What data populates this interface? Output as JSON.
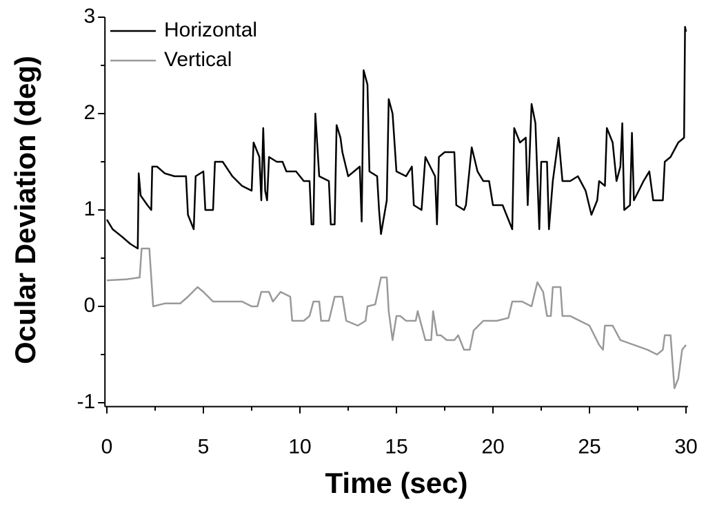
{
  "chart_data": {
    "type": "line",
    "xlabel": "Time (sec)",
    "ylabel": "Ocular Deviation (deg)",
    "xlim": [
      -0.1,
      30.1
    ],
    "ylim": [
      -1.04,
      3
    ],
    "xticks": [
      0,
      5,
      10,
      15,
      20,
      25,
      30
    ],
    "yticks": [
      -1,
      0,
      1,
      2,
      3
    ],
    "x_minor_ticks": [
      2.5,
      7.5,
      12.5,
      17.5,
      22.5,
      27.5
    ],
    "y_minor_ticks": [
      -0.5,
      0.5,
      1.5,
      2.5
    ],
    "legend": "upper left",
    "series": [
      {
        "name": "Horizontal",
        "color": "#000000",
        "x": [
          0,
          0.3,
          0.8,
          1.2,
          1.6,
          1.65,
          1.75,
          2.1,
          2.3,
          2.35,
          2.6,
          3,
          3.5,
          4.1,
          4.2,
          4.5,
          4.6,
          5,
          5.1,
          5.5,
          5.6,
          6,
          6.5,
          7,
          7.5,
          7.6,
          7.9,
          8,
          8.1,
          8.2,
          8.3,
          8.4,
          8.8,
          9.1,
          9.3,
          9.8,
          10.2,
          10.5,
          10.6,
          10.7,
          10.8,
          11,
          11.5,
          11.6,
          11.8,
          11.9,
          12.1,
          12.2,
          12.5,
          12.8,
          13.1,
          13.2,
          13.3,
          13.5,
          13.6,
          14,
          14.1,
          14.2,
          14.5,
          14.6,
          14.8,
          15,
          15.5,
          15.8,
          15.9,
          16.3,
          16.5,
          17,
          17.1,
          17.2,
          17.5,
          18,
          18.1,
          18.5,
          18.6,
          18.9,
          19.2,
          19.5,
          19.8,
          20,
          20.5,
          21,
          21.1,
          21.4,
          21.7,
          21.8,
          22,
          22.2,
          22.4,
          22.5,
          22.8,
          22.9,
          23.1,
          23.4,
          23.6,
          24,
          24.4,
          24.8,
          25.1,
          25.4,
          25.5,
          25.8,
          25.9,
          26.2,
          26.4,
          26.6,
          26.7,
          26.8,
          27.1,
          27.2,
          27.3,
          27.8,
          28.1,
          28.3,
          28.8,
          28.9,
          29.2,
          29.6,
          29.9,
          29.95,
          30
        ],
        "values": [
          0.9,
          0.8,
          0.72,
          0.65,
          0.6,
          1.38,
          1.15,
          1.05,
          1.0,
          1.45,
          1.45,
          1.38,
          1.35,
          1.35,
          0.95,
          0.8,
          1.35,
          1.4,
          1.0,
          1.0,
          1.5,
          1.5,
          1.35,
          1.25,
          1.2,
          1.7,
          1.55,
          1.1,
          1.85,
          1.2,
          1.1,
          1.55,
          1.5,
          1.5,
          1.4,
          1.4,
          1.3,
          1.3,
          0.85,
          0.85,
          2.0,
          1.35,
          1.3,
          0.85,
          0.85,
          1.88,
          1.75,
          1.6,
          1.35,
          1.4,
          1.45,
          0.88,
          2.45,
          2.3,
          1.4,
          1.35,
          1.0,
          0.75,
          1.1,
          2.15,
          2.0,
          1.4,
          1.35,
          1.45,
          1.05,
          1.0,
          1.55,
          1.35,
          0.85,
          1.55,
          1.6,
          1.6,
          1.05,
          1.0,
          1.05,
          1.65,
          1.4,
          1.3,
          1.3,
          1.05,
          1.05,
          0.8,
          1.85,
          1.7,
          1.75,
          1.05,
          2.1,
          1.9,
          0.8,
          1.5,
          1.5,
          0.8,
          1.3,
          1.75,
          1.3,
          1.3,
          1.35,
          1.2,
          0.95,
          1.1,
          1.3,
          1.25,
          1.85,
          1.7,
          1.3,
          1.45,
          1.9,
          1.0,
          1.05,
          1.8,
          1.1,
          1.3,
          1.4,
          1.1,
          1.1,
          1.5,
          1.55,
          1.7,
          1.75,
          2.9,
          2.85
        ]
      },
      {
        "name": "Vertical",
        "color": "#999999",
        "x": [
          0,
          1,
          1.7,
          1.8,
          2.2,
          2.4,
          3,
          3.8,
          4.2,
          4.7,
          5,
          5.5,
          6,
          7,
          7.5,
          7.8,
          8,
          8.4,
          8.6,
          9,
          9.5,
          9.6,
          10.2,
          10.5,
          10.7,
          11,
          11.1,
          11.5,
          11.8,
          12.2,
          12.4,
          13,
          13.4,
          13.5,
          13.9,
          14.2,
          14.5,
          14.6,
          14.8,
          15,
          15.2,
          15.5,
          16,
          16.1,
          16.5,
          16.8,
          16.9,
          17.1,
          17.3,
          17.6,
          18,
          18.2,
          18.5,
          18.8,
          19,
          19.5,
          20.2,
          20.8,
          21,
          21.5,
          22,
          22.3,
          22.6,
          22.8,
          23,
          23.1,
          23.5,
          23.6,
          24,
          24.5,
          25,
          25.5,
          25.7,
          25.8,
          26.2,
          26.6,
          27.3,
          28,
          28.5,
          28.8,
          28.9,
          29.2,
          29.4,
          29.6,
          29.8,
          30
        ],
        "values": [
          0.27,
          0.28,
          0.3,
          0.6,
          0.6,
          0.0,
          0.03,
          0.03,
          0.1,
          0.2,
          0.15,
          0.05,
          0.05,
          0.05,
          0.0,
          0.0,
          0.15,
          0.15,
          0.05,
          0.15,
          0.1,
          -0.15,
          -0.15,
          -0.1,
          0.05,
          0.05,
          -0.15,
          -0.15,
          0.1,
          0.1,
          -0.15,
          -0.2,
          -0.15,
          0.0,
          0.02,
          0.3,
          0.3,
          -0.05,
          -0.35,
          -0.1,
          -0.1,
          -0.15,
          -0.15,
          -0.05,
          -0.35,
          -0.35,
          -0.05,
          -0.3,
          -0.3,
          -0.35,
          -0.35,
          -0.3,
          -0.45,
          -0.45,
          -0.25,
          -0.15,
          -0.15,
          -0.12,
          0.05,
          0.05,
          0.0,
          0.25,
          0.15,
          -0.1,
          -0.1,
          0.2,
          0.2,
          -0.1,
          -0.1,
          -0.15,
          -0.2,
          -0.4,
          -0.45,
          -0.2,
          -0.2,
          -0.35,
          -0.4,
          -0.45,
          -0.5,
          -0.45,
          -0.3,
          -0.3,
          -0.85,
          -0.75,
          -0.45,
          -0.4
        ]
      }
    ]
  }
}
